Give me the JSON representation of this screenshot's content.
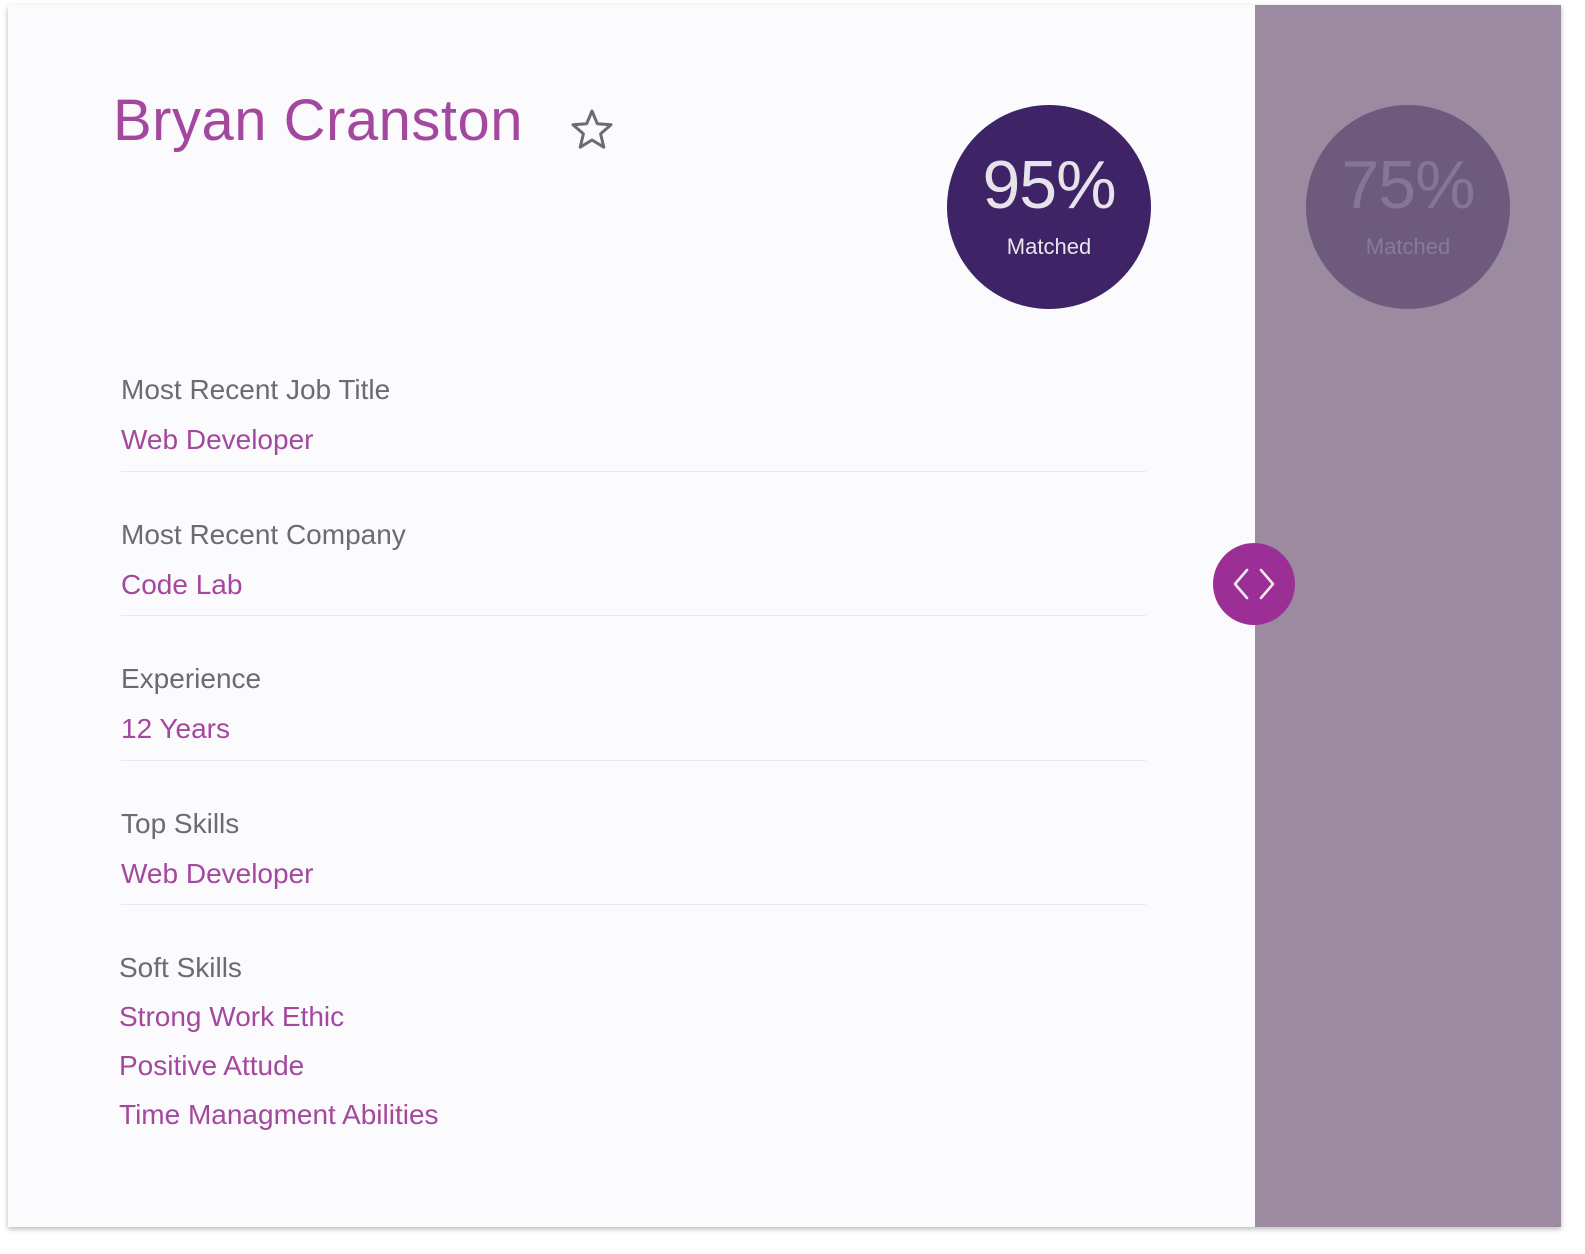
{
  "candidate": {
    "name": "Bryan Cranston"
  },
  "matches": {
    "primary": {
      "percent": "95%",
      "label": "Matched"
    },
    "secondary": {
      "percent": "75%",
      "label": "Matched"
    }
  },
  "fields": {
    "job_title": {
      "label": "Most Recent Job Title",
      "value": "Web Developer"
    },
    "company": {
      "label": "Most Recent Company",
      "value": "Code Lab"
    },
    "experience": {
      "label": "Experience",
      "value": "12 Years"
    },
    "top_skills": {
      "label": "Top Skills",
      "value": "Web Developer"
    },
    "soft_skills": {
      "label": "Soft Skills",
      "items": [
        "Strong Work Ethic",
        "Positive Attude",
        "Time Managment Abilities"
      ]
    }
  },
  "colors": {
    "accent": "#a4489f",
    "primary_badge": "#3f2367",
    "secondary_panel": "#9b8aa0",
    "nav_button": "#9c2f96"
  },
  "icons": {
    "favorite": "star-outline-icon",
    "navigation": "chevron-left-right-icon"
  }
}
